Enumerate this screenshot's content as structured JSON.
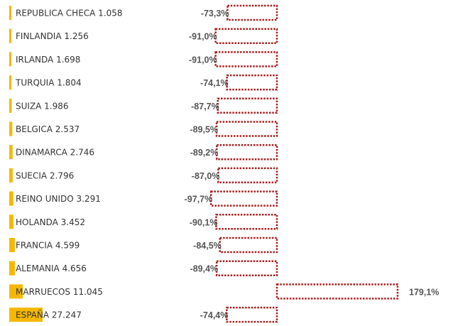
{
  "chart_data": {
    "type": "bar",
    "categories": [
      "REPUBLICA CHECA",
      "FINLANDIA",
      "IRLANDA",
      "TURQUIA",
      "SUIZA",
      "BELGICA",
      "DINAMARCA",
      "SUECIA",
      "REINO UNIDO",
      "HOLANDA",
      "FRANCIA",
      "ALEMANIA",
      "MARRUECOS",
      "ESPAÑA"
    ],
    "series": [
      {
        "values": [
          1058,
          1256,
          1698,
          1804,
          1986,
          2537,
          2746,
          2796,
          3291,
          3452,
          4599,
          4656,
          11045,
          27247
        ],
        "labels": [
          "1.058",
          "1.256",
          "1.698",
          "1.804",
          "1.986",
          "2.537",
          "2.746",
          "2.796",
          "3.291",
          "3.452",
          "4.599",
          "4.656",
          "11.045",
          "27.247"
        ]
      },
      {
        "values": [
          -73.3,
          -91.0,
          -91.0,
          -74.1,
          -87.7,
          -89.5,
          -89.2,
          -87.0,
          -97.7,
          -90.1,
          -84.5,
          -89.4,
          179.1,
          -74.4
        ],
        "labels": [
          "-73,3%",
          "-91,0%",
          "-91,0%",
          "-74,1%",
          "-87,7%",
          "-89,5%",
          "-89,2%",
          "-87,0%",
          "-97,7%",
          "-90,1%",
          "-84,5%",
          "-89,4%",
          "179,1%",
          "-74,4%"
        ]
      }
    ],
    "colors": {
      "volume_bar": "#F5B800",
      "change_border": "#A81E1E",
      "country_text": "#333333",
      "pct_text": "#555555"
    }
  }
}
